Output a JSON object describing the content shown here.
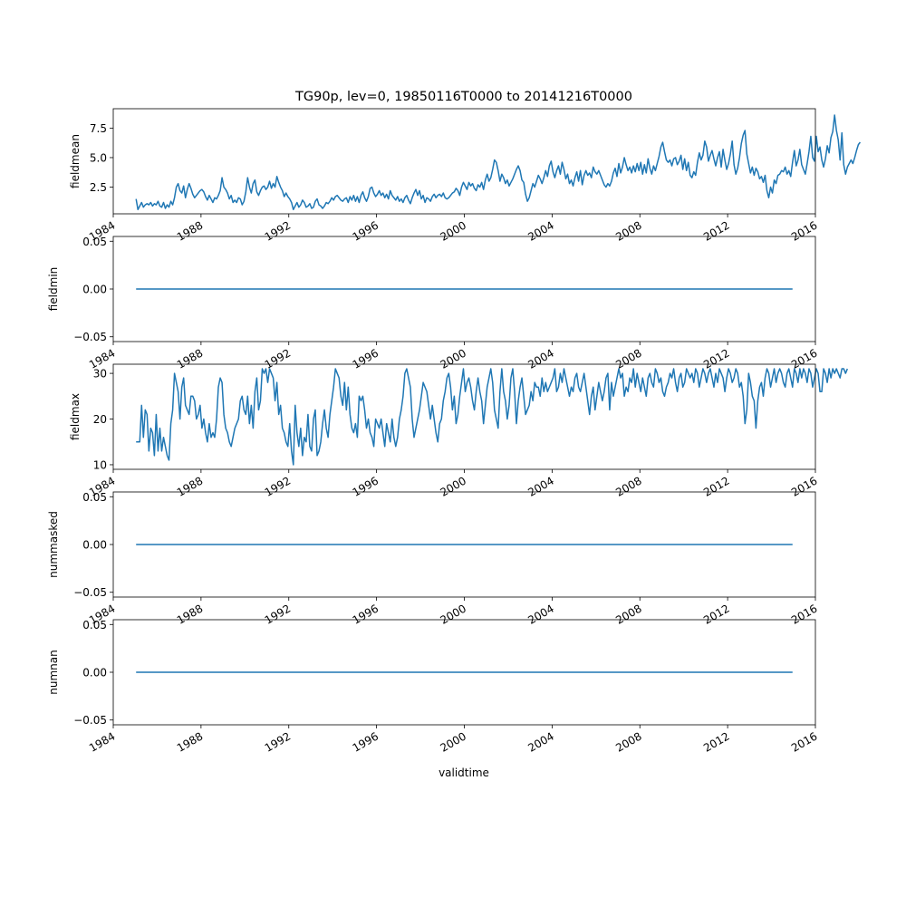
{
  "figure": {
    "title": "TG90p, lev=0, 19850116T0000 to 20141216T0000",
    "xlabel": "validtime",
    "line_color": "#1f77b4"
  },
  "chart_data": [
    {
      "type": "line",
      "ylabel": "fieldmean",
      "x_range": [
        "1984-01-01",
        "2016-01-01"
      ],
      "x_start": "1985-01-16",
      "x_step": "1 month",
      "x_ticks": [
        "1984",
        "1988",
        "1992",
        "1996",
        "2000",
        "2004",
        "2008",
        "2012",
        "2016"
      ],
      "y_range": [
        0.24,
        9.14
      ],
      "y_ticks": [
        "2.5",
        "5.0",
        "7.5"
      ],
      "values": [
        1.5,
        0.6,
        0.9,
        1.2,
        0.8,
        1.0,
        1.1,
        1.0,
        1.2,
        0.9,
        1.1,
        1.0,
        1.3,
        0.9,
        0.8,
        1.2,
        0.7,
        1.0,
        0.8,
        1.3,
        1.0,
        1.6,
        2.5,
        2.8,
        2.2,
        2.0,
        2.6,
        1.6,
        2.3,
        2.8,
        2.4,
        1.9,
        1.6,
        1.8,
        2.0,
        2.2,
        2.3,
        2.1,
        1.7,
        1.4,
        1.8,
        1.5,
        1.2,
        1.6,
        1.5,
        1.8,
        2.2,
        3.3,
        2.5,
        2.3,
        2.0,
        1.5,
        1.8,
        1.2,
        1.4,
        1.2,
        1.6,
        1.5,
        1.0,
        1.3,
        2.1,
        3.3,
        2.5,
        2.0,
        2.8,
        3.1,
        2.1,
        1.8,
        2.2,
        2.5,
        2.6,
        2.3,
        2.5,
        3.0,
        2.4,
        2.8,
        2.5,
        3.4,
        2.9,
        2.5,
        2.2,
        1.7,
        2.0,
        1.7,
        1.5,
        1.2,
        0.6,
        0.9,
        1.2,
        0.8,
        1.0,
        1.4,
        1.2,
        0.8,
        0.9,
        1.1,
        0.7,
        0.8,
        1.3,
        1.5,
        1.0,
        0.9,
        0.7,
        0.9,
        1.2,
        1.1,
        1.3,
        1.6,
        1.4,
        1.7,
        1.8,
        1.6,
        1.4,
        1.3,
        1.5,
        1.6,
        1.2,
        1.7,
        1.4,
        1.8,
        1.3,
        1.7,
        1.2,
        1.8,
        2.1,
        1.6,
        1.3,
        1.7,
        2.4,
        2.5,
        2.0,
        1.7,
        1.9,
        2.2,
        1.8,
        2.0,
        1.6,
        1.9,
        1.5,
        2.2,
        1.8,
        1.6,
        1.4,
        1.7,
        1.3,
        1.5,
        1.2,
        1.6,
        1.8,
        1.4,
        1.1,
        1.6,
        2.0,
        2.3,
        1.8,
        2.2,
        1.5,
        1.8,
        1.2,
        1.6,
        1.5,
        1.3,
        1.7,
        1.9,
        1.6,
        1.8,
        1.9,
        1.7,
        2.0,
        1.6,
        1.5,
        1.6,
        1.8,
        2.0,
        2.1,
        2.4,
        2.2,
        1.8,
        2.5,
        2.9,
        2.6,
        2.3,
        2.9,
        2.6,
        2.8,
        2.4,
        2.2,
        2.7,
        2.5,
        2.9,
        2.3,
        3.1,
        3.6,
        3.0,
        3.3,
        4.0,
        4.8,
        4.6,
        3.9,
        3.0,
        3.6,
        3.3,
        2.8,
        3.1,
        2.6,
        2.9,
        3.2,
        3.6,
        4.0,
        4.3,
        3.9,
        3.1,
        2.9,
        1.9,
        1.3,
        1.6,
        2.2,
        2.8,
        2.5,
        3.0,
        3.5,
        3.2,
        2.8,
        3.3,
        3.9,
        3.4,
        4.3,
        4.7,
        3.8,
        3.3,
        3.9,
        4.3,
        3.6,
        4.6,
        4.0,
        3.2,
        3.6,
        2.8,
        3.1,
        2.6,
        3.3,
        3.8,
        3.0,
        3.9,
        2.7,
        3.5,
        3.9,
        3.5,
        3.7,
        3.3,
        4.2,
        3.8,
        3.6,
        3.9,
        3.5,
        3.1,
        2.7,
        2.5,
        2.8,
        2.6,
        3.0,
        3.7,
        4.1,
        3.4,
        4.5,
        3.7,
        4.2,
        5.0,
        4.4,
        3.9,
        4.2,
        3.7,
        4.3,
        3.8,
        4.5,
        3.9,
        4.6,
        3.6,
        4.4,
        3.7,
        4.9,
        4.1,
        3.6,
        4.3,
        3.9,
        4.5,
        5.1,
        5.9,
        6.3,
        5.5,
        4.8,
        4.6,
        4.8,
        4.3,
        4.9,
        5.0,
        4.4,
        4.7,
        5.2,
        4.0,
        4.9,
        3.9,
        4.6,
        3.5,
        3.3,
        3.8,
        3.5,
        4.6,
        5.4,
        4.8,
        5.2,
        6.4,
        5.9,
        4.7,
        5.2,
        5.6,
        4.9,
        4.3,
        5.0,
        5.5,
        4.2,
        5.7,
        4.8,
        4.0,
        4.5,
        5.3,
        6.4,
        4.4,
        3.6,
        4.1,
        5.0,
        6.2,
        6.9,
        7.3,
        5.3,
        4.5,
        3.7,
        4.2,
        3.5,
        4.1,
        3.8,
        3.2,
        3.4,
        2.9,
        3.5,
        2.2,
        1.6,
        2.5,
        2.0,
        3.1,
        2.8,
        3.5,
        3.6,
        3.9,
        3.8,
        4.2,
        3.6,
        3.9,
        3.4,
        4.6,
        5.6,
        4.3,
        4.8,
        5.7,
        4.4,
        4.0,
        3.6,
        4.5,
        5.5,
        6.8,
        5.0,
        4.7,
        6.8,
        5.5,
        5.9,
        4.8,
        4.2,
        4.9,
        6.0,
        5.4,
        6.7,
        7.2,
        8.6,
        7.3,
        6.5,
        4.8,
        7.1,
        4.4,
        3.6,
        4.2,
        4.5,
        4.8,
        4.5,
        5.0,
        5.6,
        6.1,
        6.3
      ]
    },
    {
      "type": "line",
      "ylabel": "fieldmin",
      "x_range": [
        "1984-01-01",
        "2016-01-01"
      ],
      "x_start": "1985-01-16",
      "x_end": "2014-12-16",
      "x_ticks": [
        "1984",
        "1988",
        "1992",
        "1996",
        "2000",
        "2004",
        "2008",
        "2012",
        "2016"
      ],
      "y_range": [
        -0.055,
        0.055
      ],
      "y_ticks": [
        "0.05",
        "0.00",
        "−0.05"
      ],
      "values": [
        0,
        0
      ]
    },
    {
      "type": "line",
      "ylabel": "fieldmax",
      "x_range": [
        "1984-01-01",
        "2016-01-01"
      ],
      "x_start": "1985-01-16",
      "x_step": "1 month",
      "x_ticks": [
        "1984",
        "1988",
        "1992",
        "1996",
        "2000",
        "2004",
        "2008",
        "2012",
        "2016"
      ],
      "y_range": [
        9,
        32
      ],
      "y_ticks": [
        "10",
        "20",
        "30"
      ],
      "values": [
        15,
        15,
        15,
        23,
        16,
        22,
        21,
        13,
        18,
        17,
        12,
        21,
        13,
        18,
        13,
        16,
        14,
        12,
        11,
        19,
        22,
        30,
        28,
        26,
        20,
        27,
        29,
        23,
        22,
        21,
        25,
        25,
        24,
        20,
        21,
        23,
        18,
        20,
        17,
        15,
        19,
        16,
        17,
        16,
        20,
        27,
        29,
        28,
        21,
        18,
        17,
        15,
        14,
        16,
        18,
        19,
        20,
        24,
        25,
        22,
        21,
        25,
        19,
        23,
        18,
        26,
        29,
        22,
        24,
        31,
        30,
        31,
        28,
        31,
        30,
        29,
        24,
        28,
        21,
        23,
        18,
        17,
        15,
        14,
        19,
        13,
        10,
        23,
        17,
        14,
        18,
        12,
        16,
        15,
        21,
        14,
        13,
        20,
        22,
        12,
        13,
        15,
        19,
        22,
        18,
        16,
        21,
        24,
        27,
        31,
        30,
        29,
        25,
        23,
        28,
        22,
        27,
        21,
        18,
        17,
        19,
        16,
        25,
        24,
        25,
        22,
        18,
        20,
        17,
        16,
        14,
        20,
        19,
        18,
        20,
        17,
        14,
        19,
        17,
        15,
        20,
        16,
        14,
        16,
        20,
        22,
        25,
        30,
        31,
        29,
        27,
        20,
        16,
        18,
        20,
        22,
        25,
        28,
        27,
        26,
        23,
        20,
        23,
        20,
        17,
        15,
        19,
        20,
        24,
        26,
        29,
        30,
        27,
        22,
        25,
        19,
        21,
        25,
        28,
        31,
        26,
        28,
        29,
        27,
        24,
        22,
        26,
        29,
        26,
        24,
        19,
        23,
        27,
        29,
        31,
        28,
        22,
        20,
        18,
        26,
        31,
        26,
        24,
        20,
        23,
        29,
        31,
        26,
        19,
        24,
        27,
        29,
        25,
        21,
        22,
        23,
        26,
        24,
        28,
        27,
        27,
        25,
        29,
        26,
        28,
        26,
        27,
        28,
        29,
        31,
        26,
        27,
        30,
        28,
        31,
        29,
        27,
        25,
        27,
        26,
        29,
        30,
        27,
        26,
        28,
        30,
        27,
        24,
        21,
        25,
        27,
        22,
        25,
        28,
        26,
        24,
        26,
        29,
        30,
        22,
        28,
        25,
        27,
        29,
        31,
        29,
        30,
        25,
        27,
        26,
        29,
        28,
        31,
        27,
        30,
        28,
        26,
        29,
        27,
        25,
        29,
        30,
        28,
        27,
        31,
        30,
        28,
        29,
        26,
        25,
        27,
        28,
        30,
        29,
        31,
        28,
        26,
        29,
        30,
        27,
        28,
        31,
        30,
        29,
        30,
        28,
        31,
        30,
        27,
        29,
        31,
        30,
        28,
        30,
        31,
        29,
        27,
        30,
        28,
        31,
        30,
        29,
        26,
        29,
        31,
        30,
        28,
        29,
        31,
        30,
        27,
        28,
        25,
        19,
        22,
        30,
        28,
        25,
        24,
        18,
        24,
        27,
        28,
        25,
        29,
        31,
        30,
        27,
        29,
        31,
        28,
        30,
        31,
        30,
        28,
        27,
        30,
        31,
        29,
        27,
        31,
        30,
        28,
        31,
        29,
        31,
        30,
        28,
        31,
        30,
        27,
        29,
        31,
        30,
        26,
        26,
        31,
        30,
        28,
        31,
        29,
        31,
        30,
        31,
        30,
        29,
        31,
        31,
        30,
        31
      ]
    },
    {
      "type": "line",
      "ylabel": "nummasked",
      "x_range": [
        "1984-01-01",
        "2016-01-01"
      ],
      "x_start": "1985-01-16",
      "x_end": "2014-12-16",
      "x_ticks": [
        "1984",
        "1988",
        "1992",
        "1996",
        "2000",
        "2004",
        "2008",
        "2012",
        "2016"
      ],
      "y_range": [
        -0.055,
        0.055
      ],
      "y_ticks": [
        "0.05",
        "0.00",
        "−0.05"
      ],
      "values": [
        0,
        0
      ]
    },
    {
      "type": "line",
      "ylabel": "numnan",
      "x_range": [
        "1984-01-01",
        "2016-01-01"
      ],
      "x_start": "1985-01-16",
      "x_end": "2014-12-16",
      "x_ticks": [
        "1984",
        "1988",
        "1992",
        "1996",
        "2000",
        "2004",
        "2008",
        "2012",
        "2016"
      ],
      "y_range": [
        -0.055,
        0.055
      ],
      "y_ticks": [
        "0.05",
        "0.00",
        "−0.05"
      ],
      "values": [
        0,
        0
      ]
    }
  ]
}
